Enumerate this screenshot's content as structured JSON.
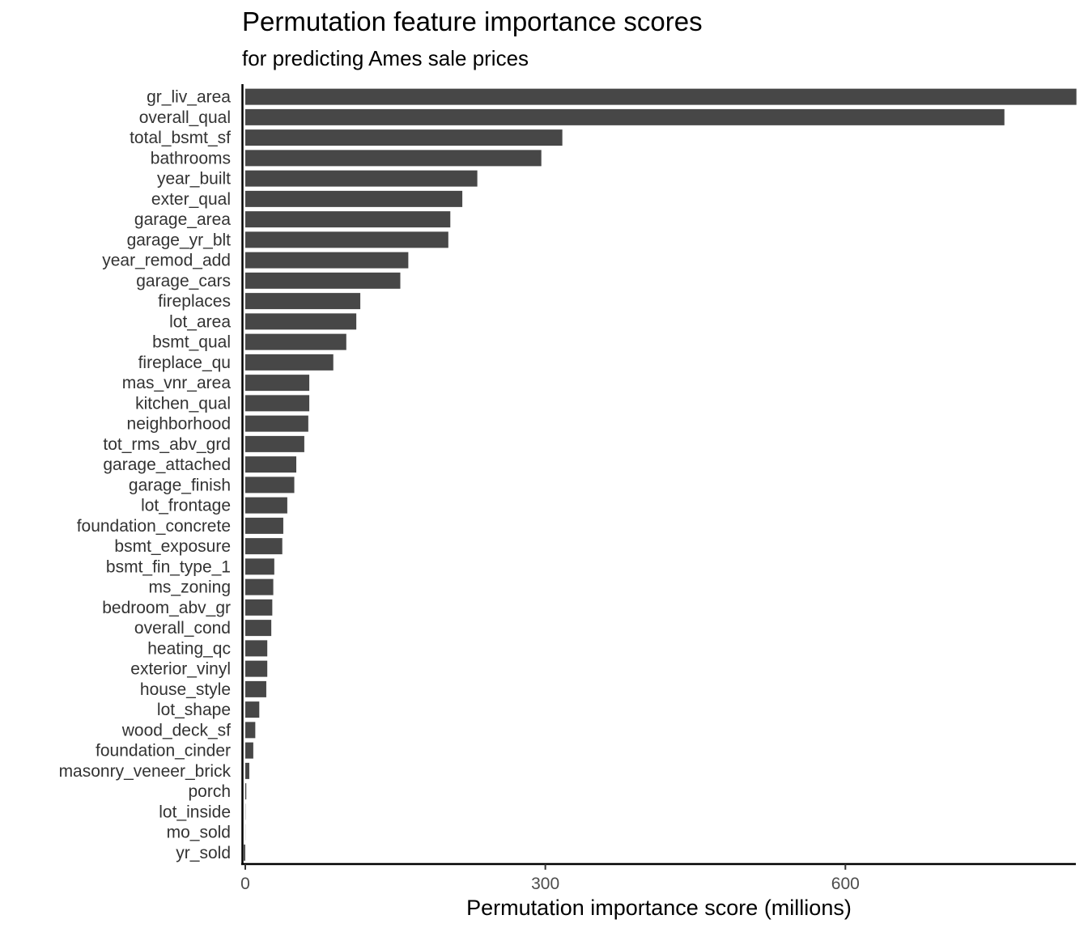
{
  "chart_data": {
    "type": "bar",
    "orientation": "horizontal",
    "title": "Permutation feature importance scores",
    "subtitle": "for predicting Ames sale prices",
    "xlabel": "Permutation importance score (millions)",
    "ylabel": "",
    "xlim": [
      -4,
      830
    ],
    "xticks": [
      0,
      300,
      600
    ],
    "bar_color": "#474747",
    "grid": false,
    "legend": "none",
    "categories": [
      "gr_liv_area",
      "overall_qual",
      "total_bsmt_sf",
      "bathrooms",
      "year_built",
      "exter_qual",
      "garage_area",
      "garage_yr_blt",
      "year_remod_add",
      "garage_cars",
      "fireplaces",
      "lot_area",
      "bsmt_qual",
      "fireplace_qu",
      "mas_vnr_area",
      "kitchen_qual",
      "neighborhood",
      "tot_rms_abv_grd",
      "garage_attached",
      "garage_finish",
      "lot_frontage",
      "foundation_concrete",
      "bsmt_exposure",
      "bsmt_fin_type_1",
      "ms_zoning",
      "bedroom_abv_gr",
      "overall_cond",
      "heating_qc",
      "exterior_vinyl",
      "house_style",
      "lot_shape",
      "wood_deck_sf",
      "foundation_cinder",
      "masonry_veneer_brick",
      "porch",
      "lot_inside",
      "mo_sold",
      "yr_sold"
    ],
    "values": [
      831,
      759,
      317,
      296,
      232,
      217,
      205,
      203,
      163,
      155,
      115,
      111,
      101,
      88,
      64,
      64,
      63,
      59,
      51,
      49,
      42,
      38,
      37,
      29,
      28,
      27,
      26,
      22,
      22,
      21,
      14,
      10,
      8,
      4,
      1,
      0.2,
      0.1,
      -1.5
    ]
  }
}
